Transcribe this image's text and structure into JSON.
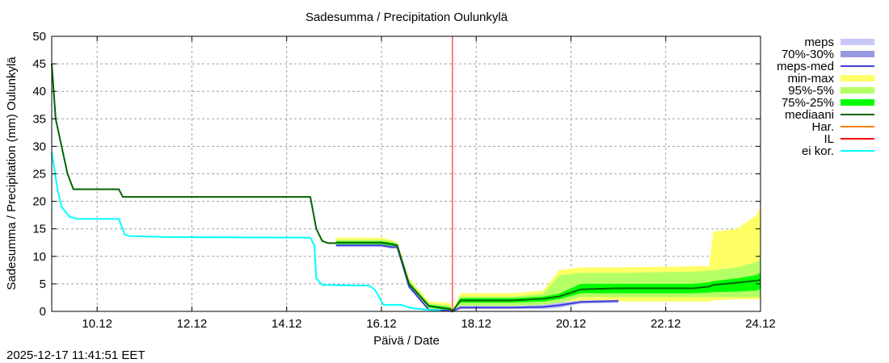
{
  "chart_data": {
    "type": "area",
    "title": "Sadesumma / Precipitation  Oulunkylä",
    "xlabel": "Päivä / Date",
    "ylabel": "Sadesumma / Precipitation (mm)  Oulunkylä",
    "timestamp": "2025-12-17 11:41:51 EET",
    "xlim": [
      "2025-12-09 01:00",
      "2025-12-24 00:00"
    ],
    "ylim": [
      0,
      50
    ],
    "yticks": [
      0,
      5,
      10,
      15,
      20,
      25,
      30,
      35,
      40,
      45,
      50
    ],
    "xticks": [
      {
        "date": "2025-12-10 00:00",
        "label": "10.12"
      },
      {
        "date": "2025-12-12 00:00",
        "label": "12.12"
      },
      {
        "date": "2025-12-14 00:00",
        "label": "14.12"
      },
      {
        "date": "2025-12-16 00:00",
        "label": "16.12"
      },
      {
        "date": "2025-12-18 00:00",
        "label": "18.12"
      },
      {
        "date": "2025-12-20 00:00",
        "label": "20.12"
      },
      {
        "date": "2025-12-22 00:00",
        "label": "22.12"
      },
      {
        "date": "2025-12-24 00:00",
        "label": "24.12"
      }
    ],
    "grid": true,
    "legend_position": "right",
    "legend": [
      {
        "name": "meps",
        "color": "#c8c8f8",
        "kind": "band"
      },
      {
        "name": "70%-30%",
        "color": "#9898e0",
        "kind": "band"
      },
      {
        "name": "meps-med",
        "color": "#4040d8",
        "kind": "line"
      },
      {
        "name": "min-max",
        "color": "#ffff66",
        "kind": "band"
      },
      {
        "name": "95%-5%",
        "color": "#b4ff66",
        "kind": "band"
      },
      {
        "name": "75%-25%",
        "color": "#00ff00",
        "kind": "band"
      },
      {
        "name": "mediaani",
        "color": "#006400",
        "kind": "line"
      },
      {
        "name": "Har.",
        "color": "#ff8000",
        "kind": "line"
      },
      {
        "name": "IL",
        "color": "#ff0000",
        "kind": "line"
      },
      {
        "name": "ei kor.",
        "color": "#00ffff",
        "kind": "line"
      }
    ],
    "analysis_time": "2025-12-17 12:00",
    "forecast_times": [
      "2025-12-15 01:00",
      "2025-12-16 00:00",
      "2025-12-16 05:00",
      "2025-12-16 08:00",
      "2025-12-16 14:00",
      "2025-12-17 00:00",
      "2025-12-17 11:00",
      "2025-12-17 12:00",
      "2025-12-17 16:00",
      "2025-12-18 19:00",
      "2025-12-19 10:00",
      "2025-12-19 18:00",
      "2025-12-20 05:00",
      "2025-12-21 00:00",
      "2025-12-22 14:00",
      "2025-12-22 22:00",
      "2025-12-23 00:00",
      "2025-12-23 12:00",
      "2025-12-23 22:00",
      "2025-12-24 00:00"
    ],
    "bands": {
      "min-max": {
        "lo": [
          12,
          12,
          11.5,
          11.5,
          4.5,
          0.5,
          0,
          0,
          0.5,
          0.5,
          0.7,
          1.0,
          1.5,
          1.8,
          1.8,
          1.8,
          2,
          2.2,
          2.2,
          2.2
        ],
        "hi": [
          13.4,
          13.4,
          13,
          12.5,
          6,
          1.8,
          1.5,
          0.2,
          3.3,
          3.3,
          3.8,
          7.5,
          8,
          8,
          8.2,
          8.2,
          14.5,
          15,
          17.5,
          19
        ]
      },
      "95%-5%": {
        "lo": [
          12.1,
          12.1,
          11.7,
          11.7,
          4.7,
          0.6,
          0.1,
          0,
          1.0,
          1.0,
          1.2,
          1.5,
          2.6,
          2.6,
          2.6,
          2.6,
          2.6,
          2.6,
          2.6,
          2.6
        ],
        "hi": [
          13,
          13,
          12.8,
          12.3,
          5.7,
          1.5,
          1.0,
          0.1,
          2.7,
          2.7,
          3.2,
          6.5,
          7,
          7,
          7.2,
          7.4,
          7.5,
          8,
          9,
          9.5
        ]
      },
      "75%-25%": {
        "lo": [
          12.2,
          12.2,
          11.9,
          11.8,
          4.8,
          0.7,
          0.2,
          0,
          1.6,
          1.6,
          1.8,
          2.2,
          3.3,
          3.3,
          3.3,
          3.4,
          3.5,
          3.6,
          3.8,
          4
        ],
        "hi": [
          12.7,
          12.7,
          12.5,
          12.2,
          5.3,
          1.2,
          0.7,
          0.05,
          2.4,
          2.4,
          2.7,
          3.2,
          5.0,
          5.0,
          5.0,
          5.3,
          5.5,
          6,
          6.6,
          7
        ]
      }
    },
    "mediaani_forecast": [
      12.5,
      12.5,
      12.2,
      12.0,
      5.0,
      1.0,
      0.4,
      0,
      2,
      2,
      2.3,
      2.7,
      4.0,
      4.2,
      4.2,
      4.5,
      4.8,
      5.2,
      5.6,
      5.7
    ],
    "mediaani_history": {
      "x": [
        "2025-12-09 01:00",
        "2025-12-09 03:00",
        "2025-12-09 06:00",
        "2025-12-09 09:00",
        "2025-12-09 12:00",
        "2025-12-10 11:00",
        "2025-12-10 13:00",
        "2025-12-14 12:00",
        "2025-12-14 15:00",
        "2025-12-14 18:00",
        "2025-12-14 21:00",
        "2025-12-15 01:00"
      ],
      "y": [
        45,
        35,
        30,
        25,
        22.2,
        22.2,
        20.8,
        20.8,
        15,
        12.8,
        12.4,
        12.4
      ]
    },
    "meps": {
      "x": [
        "2025-12-15 01:00",
        "2025-12-16 00:00",
        "2025-12-16 05:00",
        "2025-12-16 08:00",
        "2025-12-16 14:00",
        "2025-12-17 00:00",
        "2025-12-17 11:00",
        "2025-12-17 12:00",
        "2025-12-17 16:00",
        "2025-12-18 19:00",
        "2025-12-19 10:00",
        "2025-12-19 18:00",
        "2025-12-20 05:00",
        "2025-12-21 00:00"
      ],
      "med": [
        12,
        12,
        11.7,
        11.7,
        4.5,
        0.3,
        0.1,
        0,
        0.7,
        0.7,
        0.8,
        1.1,
        1.7,
        1.9
      ],
      "band_lo": [
        11.7,
        11.7,
        11.4,
        11.4,
        4.2,
        0.1,
        0,
        0,
        0.4,
        0.4,
        0.4,
        0.6,
        1.4,
        1.5
      ],
      "band_hi": [
        12.2,
        12.2,
        11.9,
        11.9,
        4.8,
        0.5,
        0.3,
        0.1,
        1.0,
        1.0,
        1.2,
        1.6,
        2.0,
        2.1
      ],
      "p70_lo": [
        11.85,
        11.85,
        11.55,
        11.55,
        4.35,
        0.2,
        0.05,
        0,
        0.55,
        0.55,
        0.6,
        0.9,
        1.55,
        1.7
      ],
      "p70_hi": [
        12.1,
        12.1,
        11.8,
        11.8,
        4.7,
        0.4,
        0.2,
        0.05,
        0.85,
        0.85,
        1.0,
        1.35,
        1.85,
        2.0
      ]
    },
    "ei_kor": {
      "x": [
        "2025-12-09 01:00",
        "2025-12-09 04:00",
        "2025-12-09 06:00",
        "2025-12-09 10:00",
        "2025-12-09 14:00",
        "2025-12-10 11:00",
        "2025-12-10 14:00",
        "2025-12-10 16:00",
        "2025-12-11 12:00",
        "2025-12-14 12:00",
        "2025-12-14 14:00",
        "2025-12-14 15:00",
        "2025-12-14 18:00",
        "2025-12-15 18:00",
        "2025-12-15 21:00",
        "2025-12-16 01:00",
        "2025-12-16 10:00",
        "2025-12-16 15:00",
        "2025-12-17 00:00",
        "2025-12-17 06:00"
      ],
      "y": [
        29,
        22,
        19,
        17.2,
        16.8,
        16.8,
        14,
        13.7,
        13.5,
        13.4,
        12,
        6,
        4.8,
        4.7,
        3.8,
        1.2,
        1.2,
        0.6,
        0.3,
        0.1
      ]
    }
  }
}
